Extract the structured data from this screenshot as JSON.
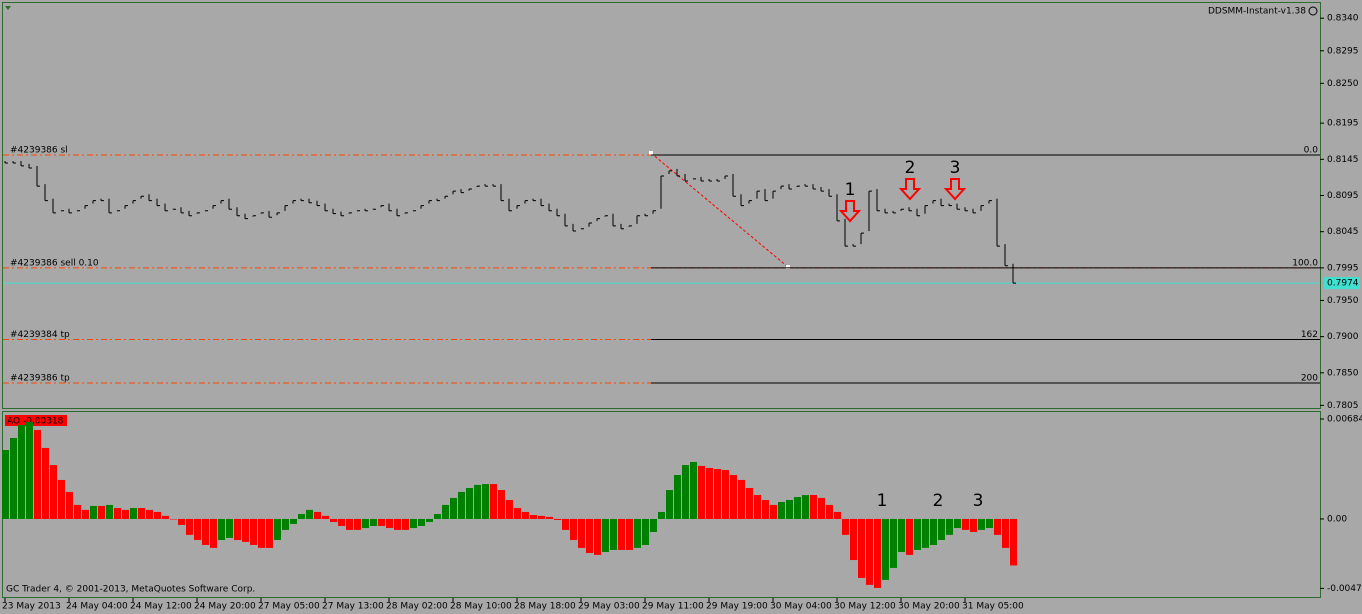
{
  "header": {
    "indicator": "DDSMM-Instant-v1.38",
    "footer": "GC Trader 4, © 2001-2013, MetaQuotes Software Corp."
  },
  "chart_data": [
    {
      "type": "price",
      "color": "#000000",
      "categories": [
        "23 May 2013",
        null,
        null,
        null,
        null,
        null,
        null,
        null,
        "24 May 04:00",
        null,
        null,
        null,
        null,
        null,
        null,
        null,
        "24 May 12:00",
        null,
        null,
        null,
        null,
        null,
        null,
        null,
        "24 May 20:00",
        null,
        null,
        null,
        null,
        null,
        null,
        null,
        "27 May 05:00",
        null,
        null,
        null,
        null,
        null,
        null,
        null,
        "27 May 13:00",
        null,
        null,
        null,
        null,
        null,
        null,
        null,
        "28 May 02:00",
        null,
        null,
        null,
        null,
        null,
        null,
        null,
        "28 May 10:00",
        null,
        null,
        null,
        null,
        null,
        null,
        null,
        "28 May 18:00",
        null,
        null,
        null,
        null,
        null,
        null,
        null,
        "29 May 03:00",
        null,
        null,
        null,
        null,
        null,
        null,
        null,
        "29 May 11:00",
        null,
        null,
        null,
        null,
        null,
        null,
        null,
        "29 May 19:00",
        null,
        null,
        null,
        null,
        null,
        null,
        null,
        "30 May 04:00",
        null,
        null,
        null,
        null,
        null,
        null,
        null,
        "30 May 12:00",
        null,
        null,
        null,
        null,
        null,
        null,
        null,
        "30 May 20:00",
        null,
        null,
        null,
        null,
        null,
        null,
        null,
        "31 May 05:00",
        null,
        null,
        null,
        null,
        null,
        null
      ],
      "values": [
        0.814,
        0.814,
        0.8136,
        0.8133,
        0.8108,
        0.8088,
        0.8071,
        0.8074,
        0.8071,
        0.8074,
        0.8081,
        0.8088,
        0.8088,
        0.8071,
        0.8074,
        0.8081,
        0.8088,
        0.8094,
        0.8088,
        0.8081,
        0.8074,
        0.8076,
        0.8071,
        0.8067,
        0.8071,
        0.8074,
        0.8081,
        0.8088,
        0.8076,
        0.8067,
        0.8063,
        0.8067,
        0.8071,
        0.8065,
        0.8071,
        0.8081,
        0.8088,
        0.8088,
        0.8085,
        0.8081,
        0.8074,
        0.807,
        0.8067,
        0.8071,
        0.8074,
        0.8074,
        0.8076,
        0.8081,
        0.8074,
        0.8067,
        0.8071,
        0.8074,
        0.8081,
        0.8088,
        0.8088,
        0.8094,
        0.8101,
        0.8099,
        0.8104,
        0.8108,
        0.8108,
        0.8108,
        0.8088,
        0.8074,
        0.8081,
        0.8088,
        0.8088,
        0.8081,
        0.8074,
        0.8067,
        0.8053,
        0.8046,
        0.8049,
        0.8057,
        0.8063,
        0.8067,
        0.8053,
        0.8049,
        0.8053,
        0.8067,
        0.8067,
        0.8074,
        0.8122,
        0.8129,
        0.8122,
        0.8115,
        0.8118,
        0.8115,
        0.8115,
        0.8115,
        0.8122,
        0.8094,
        0.8081,
        0.8088,
        0.8101,
        0.8088,
        0.8101,
        0.8108,
        0.8104,
        0.8108,
        0.8108,
        0.8104,
        0.8101,
        0.8094,
        0.806,
        0.8025,
        0.8025,
        0.8043,
        0.8101,
        0.8074,
        0.8071,
        0.8071,
        0.8076,
        0.8074,
        0.8067,
        0.8081,
        0.8088,
        0.8081,
        0.8081,
        0.8076,
        0.8074,
        0.8071,
        0.8081,
        0.8088,
        0.8025,
        0.7998,
        0.7974
      ],
      "ylim": [
        0.78,
        0.8361
      ],
      "yticks": [
        {
          "value": 0.834,
          "label": "0.8340"
        },
        0.8295,
        {
          "value": 0.825,
          "label": "0.8250"
        },
        0.8195,
        0.8145,
        0.8095,
        0.8045,
        0.7995,
        {
          "value": 0.795,
          "label": "0.7950"
        },
        {
          "value": 0.79,
          "label": "0.7900"
        },
        {
          "value": 0.785,
          "label": "0.7850"
        },
        0.7805
      ],
      "bid": 0.7974,
      "bid_color": "#40e0d0",
      "orders": [
        {
          "label": "#4239386 sl",
          "value": 0.8151
        },
        {
          "label": "#4239386 sell 0.10",
          "value": 0.7995
        },
        {
          "label": "#4239384 tp",
          "value": 0.7896
        },
        {
          "label": "#4239386 tp",
          "value": 0.7836
        }
      ],
      "order_color": "#ff4500",
      "fib_levels": [
        {
          "label": "0.0",
          "value": 0.8151
        },
        {
          "label": "100.0",
          "value": 0.7995
        },
        {
          "label": "162",
          "value": 0.7896
        },
        {
          "label": "200",
          "value": 0.7836
        }
      ],
      "annotations": [
        "1",
        "2",
        "3"
      ]
    },
    {
      "type": "bar",
      "label": "AO -0.00318",
      "up_color": "#008000",
      "down_color": "#ff0000",
      "values": [
        0.00472,
        0.00554,
        0.00643,
        0.00663,
        0.00609,
        0.00486,
        0.00369,
        0.00267,
        0.00185,
        0.00096,
        0.00062,
        0.00089,
        0.00089,
        0.00096,
        0.00075,
        0.00062,
        0.00075,
        0.00075,
        0.00062,
        0.00048,
        0.00021,
        0,
        -0.00041,
        -0.00109,
        -0.00144,
        -0.00178,
        -0.00198,
        -0.00144,
        -0.0013,
        -0.00144,
        -0.00157,
        -0.00178,
        -0.00198,
        -0.00198,
        -0.00144,
        -0.00075,
        -0.00034,
        0.00034,
        0.00062,
        0.00048,
        0.00021,
        -0.00021,
        -0.00048,
        -0.00075,
        -0.00075,
        -0.00062,
        -0.00048,
        -0.00048,
        -0.00062,
        -0.00075,
        -0.00075,
        -0.00062,
        -0.00048,
        -0.00021,
        0.00034,
        0.00096,
        0.00144,
        0.00185,
        0.00212,
        0.00233,
        0.00239,
        0.00239,
        0.00198,
        0.0013,
        0.00075,
        0.00048,
        0.00027,
        0.00021,
        0.00014,
        -7e-05,
        -0.00075,
        -0.00144,
        -0.00198,
        -0.00233,
        -0.00246,
        -0.00226,
        -0.00212,
        -0.00212,
        -0.00212,
        -0.00198,
        -0.00178,
        -0.00089,
        0.00048,
        0.00198,
        0.00301,
        0.00369,
        0.0039,
        0.00363,
        0.00349,
        0.00342,
        0.00335,
        0.00301,
        0.00267,
        0.00212,
        0.00164,
        0.0013,
        0.00096,
        0.00116,
        0.0013,
        0.0015,
        0.00164,
        0.00164,
        0.00144,
        0.00096,
        0.00048,
        -0.00109,
        -0.00281,
        -0.00404,
        -0.00451,
        -0.00472,
        -0.00417,
        -0.00335,
        -0.00226,
        -0.00246,
        -0.00212,
        -0.00198,
        -0.00178,
        -0.00144,
        -0.00109,
        -0.00062,
        -0.00075,
        -0.00089,
        -0.00075,
        -0.00062,
        -0.00109,
        -0.00198,
        -0.00318
      ],
      "ylim": [
        -0.00534,
        0.00732
      ],
      "yticks": [
        0.00684,
        {
          "value": 0,
          "label": "0.00"
        },
        -0.00475
      ],
      "annotations": [
        "1",
        "2",
        "3"
      ]
    }
  ]
}
